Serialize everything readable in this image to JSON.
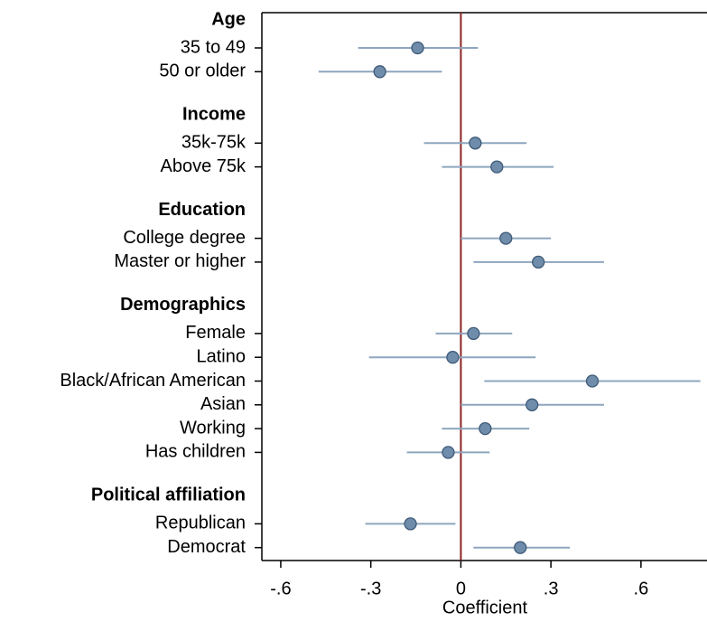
{
  "chart_data": {
    "type": "coefplot",
    "x_label": "Coefficient",
    "xlim": [
      -0.663,
      0.82
    ],
    "xticks": [
      {
        "value": -0.6,
        "label": "-.6"
      },
      {
        "value": -0.3,
        "label": "-.3"
      },
      0,
      {
        "value": 0.3,
        "label": ".3"
      },
      {
        "value": 0.6,
        "label": ".6"
      }
    ],
    "reference_line": 0,
    "reference_color": "#8b2323",
    "marker_color": "#6f8cab",
    "ci_color": "#8ea6bf",
    "groups": [
      {
        "name": "Age",
        "items": [
          {
            "label": "35 to 49",
            "estimate": -0.144,
            "lower": -0.342,
            "upper": 0.057
          },
          {
            "label": "50 or older",
            "estimate": -0.27,
            "lower": -0.474,
            "upper": -0.063
          }
        ]
      },
      {
        "name": "Income",
        "items": [
          {
            "label": "35k-75k",
            "estimate": 0.048,
            "lower": -0.123,
            "upper": 0.219
          },
          {
            "label": "Above 75k",
            "estimate": 0.12,
            "lower": -0.063,
            "upper": 0.309
          }
        ]
      },
      {
        "name": "Education",
        "items": [
          {
            "label": "College degree",
            "estimate": 0.15,
            "lower": 0.0,
            "upper": 0.3
          },
          {
            "label": "Master or higher",
            "estimate": 0.258,
            "lower": 0.042,
            "upper": 0.477
          }
        ]
      },
      {
        "name": "Demographics",
        "items": [
          {
            "label": "Female",
            "estimate": 0.042,
            "lower": -0.084,
            "upper": 0.171
          },
          {
            "label": "Latino",
            "estimate": -0.027,
            "lower": -0.306,
            "upper": 0.249
          },
          {
            "label": "Black/African American",
            "estimate": 0.438,
            "lower": 0.078,
            "upper": 0.798
          },
          {
            "label": "Asian",
            "estimate": 0.237,
            "lower": 0.0,
            "upper": 0.477
          },
          {
            "label": "Working",
            "estimate": 0.081,
            "lower": -0.063,
            "upper": 0.228
          },
          {
            "label": "Has children",
            "estimate": -0.042,
            "lower": -0.18,
            "upper": 0.096
          }
        ]
      },
      {
        "name": "Political affiliation",
        "items": [
          {
            "label": "Republican",
            "estimate": -0.168,
            "lower": -0.318,
            "upper": -0.018
          },
          {
            "label": "Democrat",
            "estimate": 0.198,
            "lower": 0.042,
            "upper": 0.363
          }
        ]
      }
    ]
  }
}
